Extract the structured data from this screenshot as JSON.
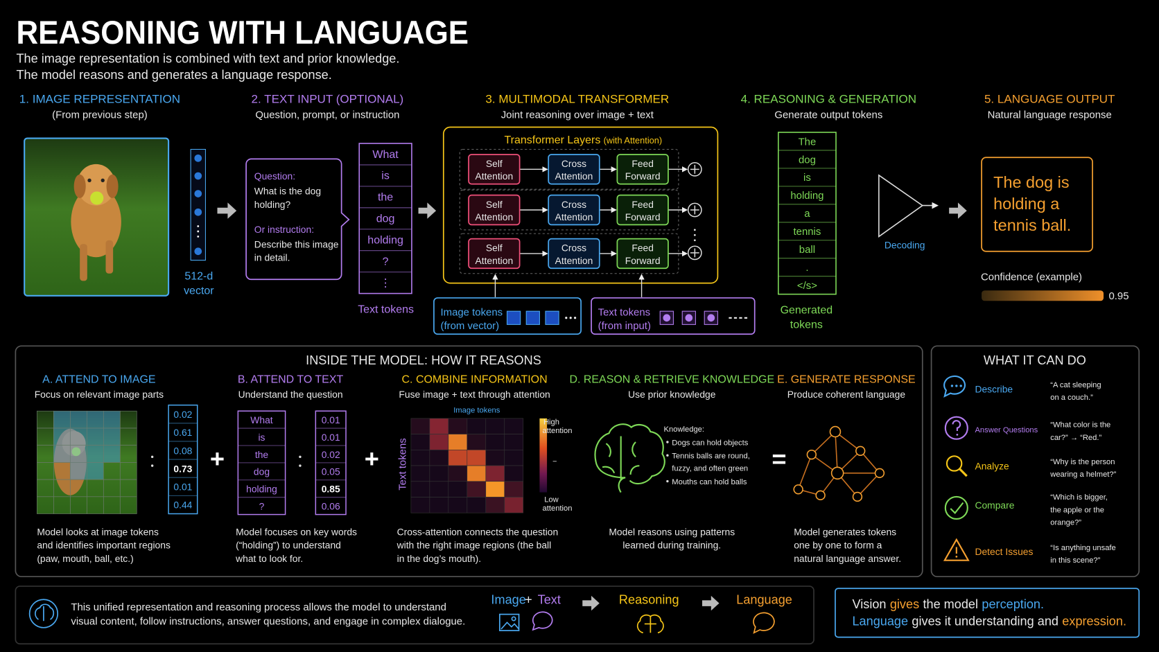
{
  "header": {
    "title": "REASONING WITH LANGUAGE",
    "subtitle": [
      "The image representation is combined with text and prior knowledge.",
      "The model reasons and generates a language response."
    ]
  },
  "pipeline": [
    {
      "title": "1. IMAGE REPRESENTATION",
      "subtitle": "(From previous step)",
      "vector_label": [
        "512-d",
        "vector"
      ]
    },
    {
      "title": "2. TEXT INPUT (OPTIONAL)",
      "subtitle": "Question, prompt, or instruction",
      "question_label": "Question:",
      "question": [
        "What is the dog",
        "holding?"
      ],
      "instruction_label": "Or instruction:",
      "instruction": [
        "Describe this image",
        "in detail."
      ],
      "tokens": [
        "What",
        "is",
        "the",
        "dog",
        "holding",
        "?",
        "⋮"
      ],
      "tokens_label": "Text tokens"
    },
    {
      "title": "3. MULTIMODAL TRANSFORMER",
      "subtitle": "Joint reasoning over image + text",
      "layers_title": "Transformer Layers",
      "layers_note": "(with Attention)",
      "layers": [
        [
          [
            "Self",
            "Attention"
          ],
          [
            "Cross",
            "Attention"
          ],
          [
            "Feed",
            "Forward"
          ]
        ],
        [
          [
            "Self",
            "Attention"
          ],
          [
            "Cross",
            "Attention"
          ],
          [
            "Feed",
            "Forward"
          ]
        ],
        [
          [
            "Self",
            "Attention"
          ],
          [
            "Cross",
            "Attention"
          ],
          [
            "Feed",
            "Forward"
          ]
        ]
      ],
      "image_tokens": [
        "Image tokens",
        "(from vector)"
      ],
      "text_tokens": [
        "Text tokens",
        "(from input)"
      ]
    },
    {
      "title": "4. REASONING & GENERATION",
      "subtitle": "Generate output tokens",
      "tokens": [
        "The",
        "dog",
        "is",
        "holding",
        "a",
        "tennis",
        "ball",
        ".",
        "</s>"
      ],
      "tokens_label": [
        "Generated",
        "tokens"
      ],
      "decoding": "Decoding"
    },
    {
      "title": "5. LANGUAGE OUTPUT",
      "subtitle": "Natural language response",
      "output": [
        "The dog is",
        "holding a",
        "tennis ball."
      ],
      "confidence_label": "Confidence (example)",
      "confidence": "0.95"
    }
  ],
  "inside": {
    "title": "INSIDE THE MODEL: HOW IT REASONS",
    "operators": [
      "+",
      "+",
      "="
    ],
    "panels": [
      {
        "title": "A. ATTEND TO IMAGE",
        "subtitle": "Focus on relevant image parts",
        "weights": [
          "0.02",
          "0.61",
          "0.08",
          "0.73",
          "0.01",
          "0.44"
        ],
        "description": [
          "Model looks at image tokens",
          "and identifies important regions",
          "(paw, mouth, ball, etc.)"
        ]
      },
      {
        "title": "B. ATTEND TO TEXT",
        "subtitle": "Understand the question",
        "words": [
          "What",
          "is",
          "the",
          "dog",
          "holding",
          "?"
        ],
        "weights": [
          "0.01",
          "0.01",
          "0.02",
          "0.05",
          "0.85",
          "0.06"
        ],
        "description": [
          "Model focuses on key words",
          "(“holding”) to understand",
          "what to look for."
        ]
      },
      {
        "title": "C. COMBINE INFORMATION",
        "subtitle": "Fuse image + text through attention",
        "x_label": "Image tokens",
        "y_label": "Text tokens",
        "high_label": [
          "High",
          "attention"
        ],
        "low_label": [
          "Low",
          "attention"
        ],
        "description": [
          "Cross-attention connects the question",
          "with the right image regions (the ball",
          "in the dog’s mouth)."
        ]
      },
      {
        "title": "D. REASON & RETRIEVE KNOWLEDGE",
        "subtitle": "Use prior knowledge",
        "knowledge_title": "Knowledge:",
        "knowledge": [
          "Dogs can hold objects",
          "Tennis balls are round,",
          "fuzzy, and often green",
          "Mouths can hold balls"
        ],
        "description": [
          "Model reasons using patterns",
          "learned during training."
        ]
      },
      {
        "title": "E. GENERATE RESPONSE",
        "subtitle": "Produce coherent language",
        "description": [
          "Model generates tokens",
          "one by one to form a",
          "natural language answer."
        ]
      }
    ]
  },
  "capabilities": {
    "title": "WHAT IT CAN DO",
    "items": [
      {
        "label": "Describe",
        "example": [
          "“A cat sleeping",
          "on a couch.”"
        ]
      },
      {
        "label": "Answer Questions",
        "example": [
          "“What color is the",
          "car?” → “Red.”"
        ]
      },
      {
        "label": "Analyze",
        "example": [
          "“Why is the person",
          "wearing a helmet?”"
        ]
      },
      {
        "label": "Compare",
        "example": [
          "“Which is bigger,",
          "the apple or the",
          "orange?”"
        ]
      },
      {
        "label": "Detect Issues",
        "example": [
          "“Is anything unsafe",
          "in this scene?”"
        ]
      }
    ]
  },
  "footer": {
    "text": [
      "This unified representation and reasoning process allows the model to understand",
      "visual content, follow instructions, answer questions, and engage in complex dialogue."
    ],
    "flow": {
      "image": "Image",
      "plus": "+",
      "text": "Text",
      "reasoning": "Reasoning",
      "language": "Language"
    },
    "statement": [
      [
        "Vision",
        "gives",
        "the model",
        "perception."
      ],
      [
        "Language",
        "gives it understanding and",
        "expression."
      ]
    ]
  }
}
